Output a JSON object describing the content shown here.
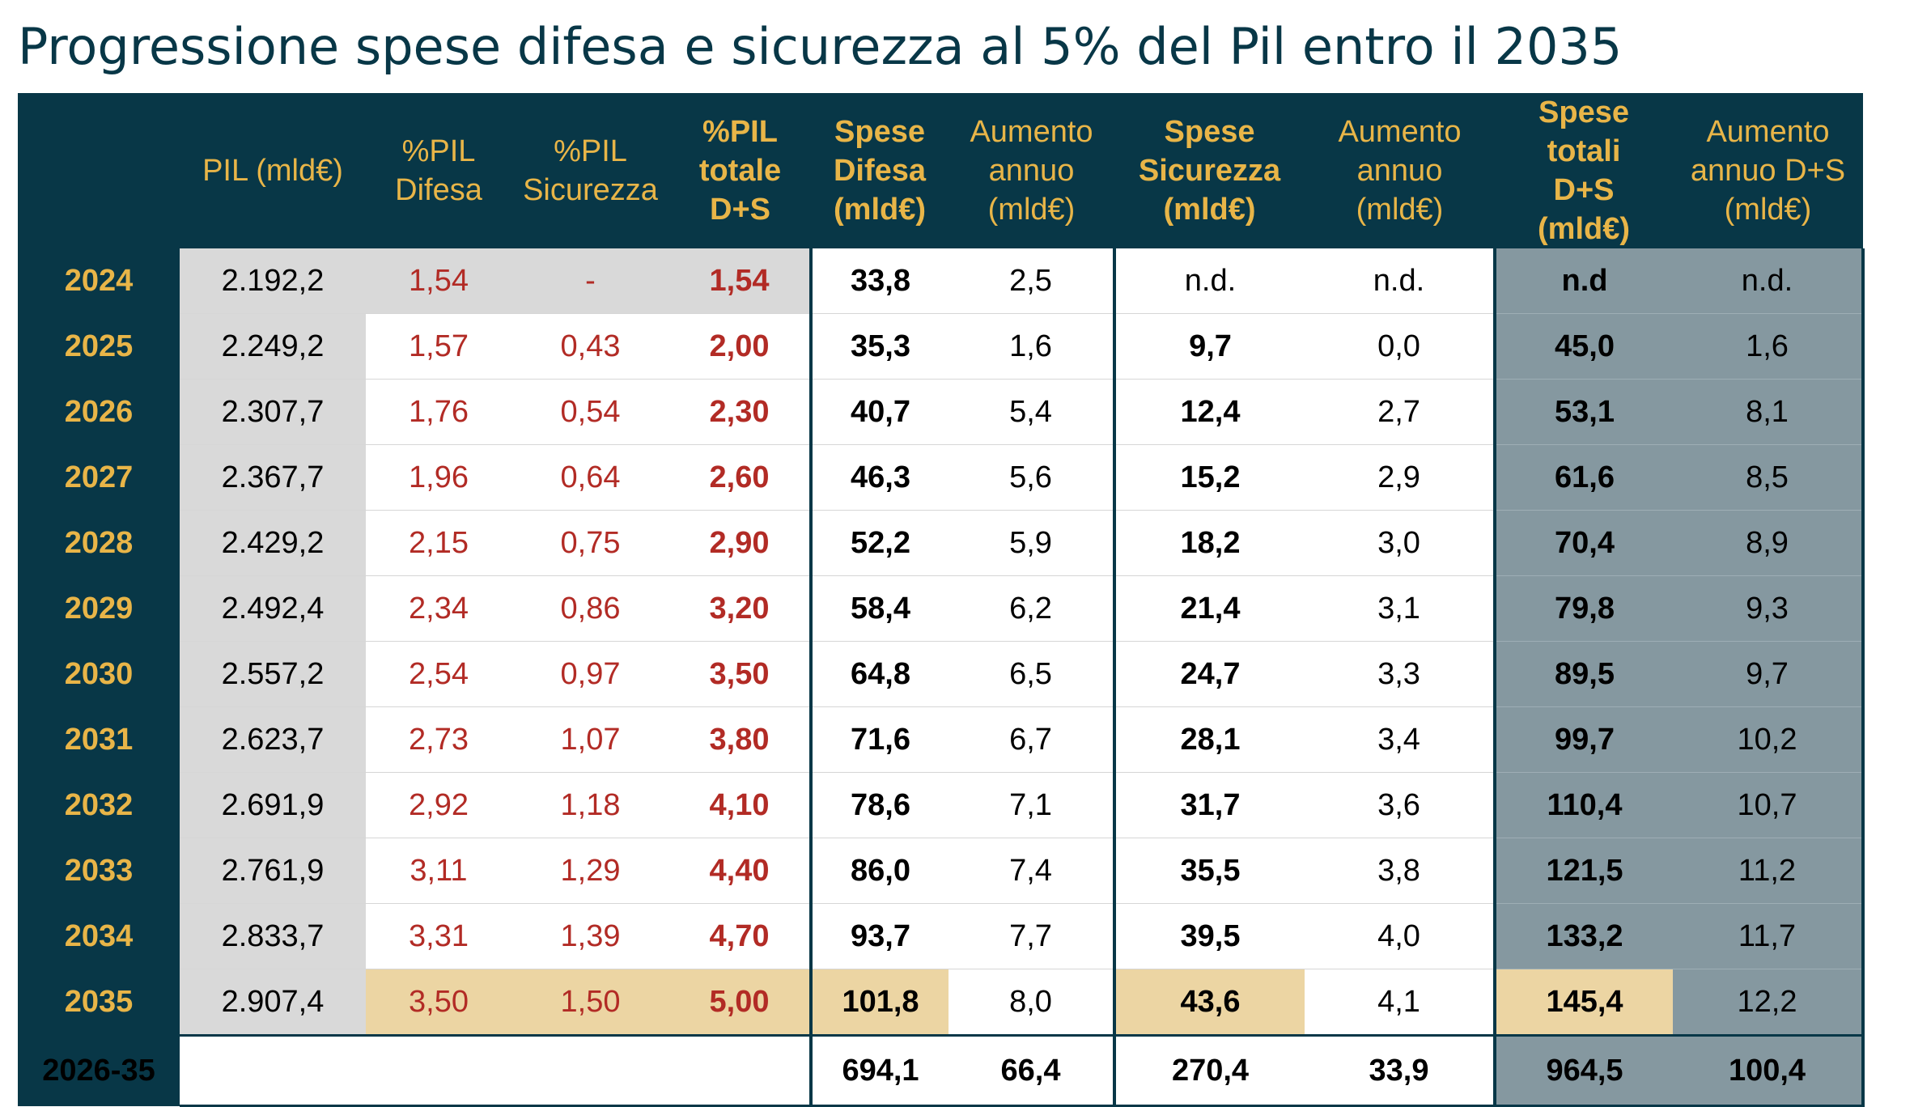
{
  "title": "Progressione spese difesa e sicurezza al 5% del Pil entro il 2035",
  "headers": {
    "pil": "PIL (mld€)",
    "pil_difesa": "%PIL Difesa",
    "pil_sicurezza": "%PIL Sicurezza",
    "pil_totale": "%PIL totale D+S",
    "spese_difesa": "Spese Difesa (mld€)",
    "aumento_difesa": "Aumento annuo (mld€)",
    "spese_sicurezza": "Spese Sicurezza (mld€)",
    "aumento_sicurezza": "Aumento annuo (mld€)",
    "spese_totali": "Spese totali D+S (mld€)",
    "aumento_totale": "Aumento annuo D+S (mld€)"
  },
  "rows": [
    {
      "year": "2024",
      "pil": "2.192,2",
      "pd": "1,54",
      "ps": "-",
      "pt": "1,54",
      "sd": "33,8",
      "ad": "2,5",
      "ss": "n.d.",
      "as": "n.d.",
      "st": "n.d",
      "at": "n.d."
    },
    {
      "year": "2025",
      "pil": "2.249,2",
      "pd": "1,57",
      "ps": "0,43",
      "pt": "2,00",
      "sd": "35,3",
      "ad": "1,6",
      "ss": "9,7",
      "as": "0,0",
      "st": "45,0",
      "at": "1,6"
    },
    {
      "year": "2026",
      "pil": "2.307,7",
      "pd": "1,76",
      "ps": "0,54",
      "pt": "2,30",
      "sd": "40,7",
      "ad": "5,4",
      "ss": "12,4",
      "as": "2,7",
      "st": "53,1",
      "at": "8,1"
    },
    {
      "year": "2027",
      "pil": "2.367,7",
      "pd": "1,96",
      "ps": "0,64",
      "pt": "2,60",
      "sd": "46,3",
      "ad": "5,6",
      "ss": "15,2",
      "as": "2,9",
      "st": "61,6",
      "at": "8,5"
    },
    {
      "year": "2028",
      "pil": "2.429,2",
      "pd": "2,15",
      "ps": "0,75",
      "pt": "2,90",
      "sd": "52,2",
      "ad": "5,9",
      "ss": "18,2",
      "as": "3,0",
      "st": "70,4",
      "at": "8,9"
    },
    {
      "year": "2029",
      "pil": "2.492,4",
      "pd": "2,34",
      "ps": "0,86",
      "pt": "3,20",
      "sd": "58,4",
      "ad": "6,2",
      "ss": "21,4",
      "as": "3,1",
      "st": "79,8",
      "at": "9,3"
    },
    {
      "year": "2030",
      "pil": "2.557,2",
      "pd": "2,54",
      "ps": "0,97",
      "pt": "3,50",
      "sd": "64,8",
      "ad": "6,5",
      "ss": "24,7",
      "as": "3,3",
      "st": "89,5",
      "at": "9,7"
    },
    {
      "year": "2031",
      "pil": "2.623,7",
      "pd": "2,73",
      "ps": "1,07",
      "pt": "3,80",
      "sd": "71,6",
      "ad": "6,7",
      "ss": "28,1",
      "as": "3,4",
      "st": "99,7",
      "at": "10,2"
    },
    {
      "year": "2032",
      "pil": "2.691,9",
      "pd": "2,92",
      "ps": "1,18",
      "pt": "4,10",
      "sd": "78,6",
      "ad": "7,1",
      "ss": "31,7",
      "as": "3,6",
      "st": "110,4",
      "at": "10,7"
    },
    {
      "year": "2033",
      "pil": "2.761,9",
      "pd": "3,11",
      "ps": "1,29",
      "pt": "4,40",
      "sd": "86,0",
      "ad": "7,4",
      "ss": "35,5",
      "as": "3,8",
      "st": "121,5",
      "at": "11,2"
    },
    {
      "year": "2034",
      "pil": "2.833,7",
      "pd": "3,31",
      "ps": "1,39",
      "pt": "4,70",
      "sd": "93,7",
      "ad": "7,7",
      "ss": "39,5",
      "as": "4,0",
      "st": "133,2",
      "at": "11,7"
    },
    {
      "year": "2035",
      "pil": "2.907,4",
      "pd": "3,50",
      "ps": "1,50",
      "pt": "5,00",
      "sd": "101,8",
      "ad": "8,0",
      "ss": "43,6",
      "as": "4,1",
      "st": "145,4",
      "at": "12,2"
    }
  ],
  "total_row": {
    "year": "2026-35",
    "sd": "694,1",
    "ad": "66,4",
    "ss": "270,4",
    "as": "33,9",
    "st": "964,5",
    "at": "100,4"
  },
  "colors": {
    "navy": "#083747",
    "gold": "#e8b548",
    "red": "#b22b25",
    "gray": "#d9d9d9",
    "slate": "#8598a0",
    "highlight": "#ecd5a3"
  }
}
